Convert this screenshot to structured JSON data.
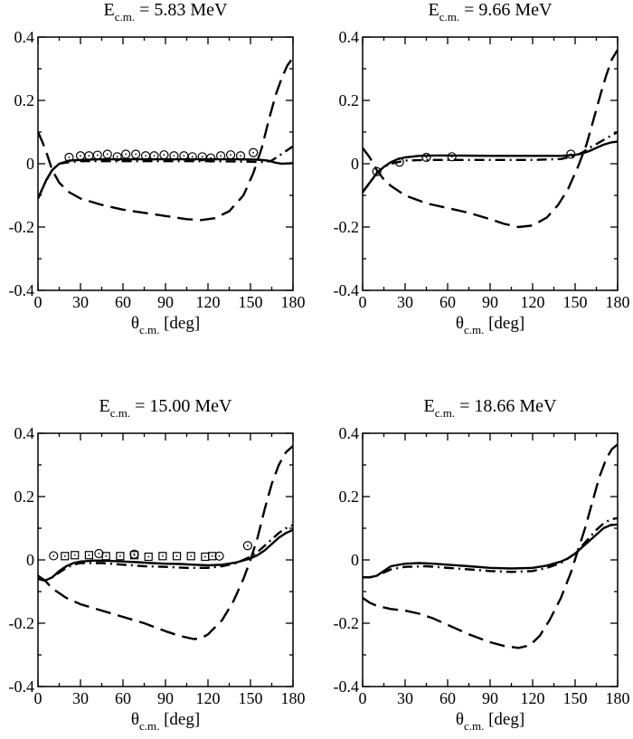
{
  "figure": {
    "description_hidden": null
  },
  "chart_data": [
    {
      "type": "line",
      "title": {
        "prefix": "E",
        "sub": "c.m.",
        "suffix": "= 5.83 MeV"
      },
      "xlabel": {
        "symbol": "θ",
        "sub": "c.m.",
        "unit": "[deg]"
      },
      "xlim": [
        0,
        180
      ],
      "ylim": [
        -0.4,
        0.4
      ],
      "xticks": [
        "0",
        "30",
        "60",
        "90",
        "120",
        "150",
        "180"
      ],
      "yticks": [
        "-0.4",
        "-0.2",
        "0",
        "0.2",
        "0.4"
      ],
      "series": [
        {
          "name": "solid",
          "style": "solid",
          "x": [
            0,
            3,
            6,
            10,
            15,
            22,
            30,
            45,
            60,
            90,
            120,
            140,
            155,
            162,
            168,
            172,
            176,
            180
          ],
          "y": [
            -0.11,
            -0.08,
            -0.05,
            -0.02,
            0.0,
            0.01,
            0.012,
            0.014,
            0.014,
            0.014,
            0.014,
            0.014,
            0.013,
            0.01,
            0.003,
            0.0,
            0.001,
            0.002
          ]
        },
        {
          "name": "dashed",
          "style": "dashed",
          "x": [
            0,
            3,
            6,
            10,
            15,
            22,
            30,
            45,
            60,
            75,
            90,
            105,
            115,
            125,
            135,
            145,
            152,
            158,
            163,
            168,
            172,
            176,
            180
          ],
          "y": [
            0.1,
            0.07,
            0.035,
            -0.02,
            -0.06,
            -0.09,
            -0.11,
            -0.13,
            -0.145,
            -0.155,
            -0.165,
            -0.175,
            -0.178,
            -0.172,
            -0.15,
            -0.1,
            -0.03,
            0.05,
            0.14,
            0.22,
            0.27,
            0.31,
            0.335
          ]
        },
        {
          "name": "dash-dot",
          "style": "dashdot",
          "x": [
            0,
            5,
            10,
            15,
            22,
            30,
            45,
            60,
            90,
            120,
            140,
            152,
            160,
            165,
            170,
            175,
            180
          ],
          "y": [
            -0.11,
            -0.06,
            -0.02,
            0.0,
            0.005,
            0.008,
            0.008,
            0.008,
            0.008,
            0.008,
            0.007,
            0.006,
            0.005,
            0.01,
            0.025,
            0.04,
            0.055
          ]
        }
      ],
      "points": [
        {
          "marker": "circle",
          "x": [
            22,
            30,
            36,
            42,
            49,
            56,
            62,
            69,
            76,
            82,
            89,
            96,
            103,
            109,
            116,
            122,
            129,
            136,
            143,
            152
          ],
          "y": [
            0.02,
            0.025,
            0.025,
            0.027,
            0.03,
            0.022,
            0.03,
            0.03,
            0.025,
            0.025,
            0.028,
            0.025,
            0.025,
            0.022,
            0.022,
            0.018,
            0.025,
            0.028,
            0.025,
            0.035
          ]
        }
      ]
    },
    {
      "type": "line",
      "title": {
        "prefix": "E",
        "sub": "c.m.",
        "suffix": "= 9.66 MeV"
      },
      "xlabel": {
        "symbol": "θ",
        "sub": "c.m.",
        "unit": "[deg]"
      },
      "xlim": [
        0,
        180
      ],
      "ylim": [
        -0.4,
        0.4
      ],
      "xticks": [
        "0",
        "30",
        "60",
        "90",
        "120",
        "150",
        "180"
      ],
      "yticks": [
        "-0.4",
        "-0.2",
        "0",
        "0.2",
        "0.4"
      ],
      "series": [
        {
          "name": "solid",
          "style": "solid",
          "x": [
            0,
            5,
            10,
            15,
            20,
            25,
            30,
            40,
            50,
            60,
            90,
            120,
            140,
            150,
            155,
            160,
            165,
            170,
            175,
            180
          ],
          "y": [
            -0.09,
            -0.06,
            -0.03,
            -0.01,
            0.005,
            0.015,
            0.02,
            0.025,
            0.026,
            0.026,
            0.025,
            0.025,
            0.025,
            0.028,
            0.032,
            0.04,
            0.05,
            0.06,
            0.067,
            0.07
          ]
        },
        {
          "name": "dashed",
          "style": "dashed",
          "x": [
            0,
            5,
            10,
            15,
            20,
            30,
            45,
            60,
            75,
            90,
            100,
            110,
            120,
            130,
            138,
            145,
            152,
            158,
            163,
            168,
            172,
            176,
            180
          ],
          "y": [
            0.05,
            0.02,
            -0.02,
            -0.05,
            -0.07,
            -0.1,
            -0.125,
            -0.14,
            -0.155,
            -0.175,
            -0.19,
            -0.2,
            -0.195,
            -0.17,
            -0.13,
            -0.08,
            -0.01,
            0.06,
            0.14,
            0.22,
            0.28,
            0.33,
            0.36
          ]
        },
        {
          "name": "dash-dot",
          "style": "dashdot",
          "x": [
            0,
            5,
            10,
            15,
            20,
            30,
            45,
            60,
            90,
            120,
            140,
            150,
            155,
            160,
            165,
            170,
            175,
            180
          ],
          "y": [
            -0.09,
            -0.06,
            -0.03,
            -0.01,
            0.0,
            0.01,
            0.012,
            0.012,
            0.012,
            0.012,
            0.015,
            0.025,
            0.035,
            0.05,
            0.062,
            0.075,
            0.088,
            0.1
          ]
        }
      ],
      "points": [
        {
          "marker": "circle",
          "x": [
            10,
            26,
            45,
            63,
            147
          ],
          "y": [
            -0.025,
            0.005,
            0.02,
            0.022,
            0.03
          ]
        }
      ]
    },
    {
      "type": "line",
      "title": {
        "prefix": "E",
        "sub": "c.m.",
        "suffix": "= 15.00 MeV"
      },
      "xlabel": {
        "symbol": "θ",
        "sub": "c.m.",
        "unit": "[deg]"
      },
      "xlim": [
        0,
        180
      ],
      "ylim": [
        -0.4,
        0.4
      ],
      "xticks": [
        "0",
        "30",
        "60",
        "90",
        "120",
        "150",
        "180"
      ],
      "yticks": [
        "-0.4",
        "-0.2",
        "0",
        "0.2",
        "0.4"
      ],
      "series": [
        {
          "name": "solid",
          "style": "solid",
          "x": [
            0,
            5,
            10,
            15,
            20,
            25,
            30,
            40,
            50,
            60,
            70,
            80,
            90,
            100,
            110,
            120,
            130,
            140,
            150,
            155,
            160,
            165,
            170,
            175,
            180
          ],
          "y": [
            -0.06,
            -0.065,
            -0.055,
            -0.035,
            -0.02,
            -0.01,
            -0.005,
            -0.002,
            -0.003,
            -0.005,
            -0.007,
            -0.01,
            -0.012,
            -0.013,
            -0.015,
            -0.017,
            -0.015,
            -0.008,
            0.005,
            0.015,
            0.03,
            0.05,
            0.07,
            0.085,
            0.095
          ]
        },
        {
          "name": "dashed",
          "style": "dashed",
          "x": [
            0,
            5,
            10,
            20,
            30,
            45,
            60,
            75,
            90,
            100,
            110,
            115,
            120,
            130,
            138,
            145,
            150,
            155,
            160,
            165,
            170,
            175,
            180
          ],
          "y": [
            -0.05,
            -0.065,
            -0.09,
            -0.12,
            -0.14,
            -0.16,
            -0.18,
            -0.2,
            -0.225,
            -0.24,
            -0.25,
            -0.248,
            -0.235,
            -0.19,
            -0.13,
            -0.06,
            0.0,
            0.07,
            0.16,
            0.24,
            0.3,
            0.34,
            0.36
          ]
        },
        {
          "name": "dash-dot",
          "style": "dashdot",
          "x": [
            0,
            5,
            10,
            15,
            20,
            25,
            30,
            45,
            60,
            75,
            90,
            105,
            120,
            130,
            140,
            150,
            155,
            160,
            165,
            170,
            175,
            180
          ],
          "y": [
            -0.06,
            -0.065,
            -0.055,
            -0.04,
            -0.025,
            -0.015,
            -0.01,
            -0.01,
            -0.015,
            -0.02,
            -0.022,
            -0.025,
            -0.025,
            -0.02,
            -0.01,
            0.01,
            0.025,
            0.045,
            0.065,
            0.085,
            0.1,
            0.11
          ]
        }
      ],
      "points": [
        {
          "marker": "circle",
          "x": [
            11,
            43,
            68,
            128,
            148
          ],
          "y": [
            0.013,
            0.02,
            0.018,
            0.012,
            0.045
          ]
        },
        {
          "marker": "square",
          "x": [
            19,
            26,
            36,
            48,
            58,
            68,
            78,
            88,
            98,
            108,
            118,
            123
          ],
          "y": [
            0.012,
            0.015,
            0.015,
            0.012,
            0.012,
            0.015,
            0.01,
            0.012,
            0.012,
            0.012,
            0.01,
            0.012
          ]
        }
      ]
    },
    {
      "type": "line",
      "title": {
        "prefix": "E",
        "sub": "c.m.",
        "suffix": "= 18.66 MeV"
      },
      "xlabel": {
        "symbol": "θ",
        "sub": "c.m.",
        "unit": "[deg]"
      },
      "xlim": [
        0,
        180
      ],
      "ylim": [
        -0.4,
        0.4
      ],
      "xticks": [
        "0",
        "30",
        "60",
        "90",
        "120",
        "150",
        "180"
      ],
      "yticks": [
        "-0.4",
        "-0.2",
        "0",
        "0.2",
        "0.4"
      ],
      "series": [
        {
          "name": "solid",
          "style": "solid",
          "x": [
            0,
            5,
            10,
            15,
            20,
            30,
            40,
            50,
            60,
            75,
            90,
            105,
            120,
            130,
            140,
            145,
            150,
            155,
            160,
            165,
            170,
            175,
            180
          ],
          "y": [
            -0.055,
            -0.055,
            -0.05,
            -0.035,
            -0.02,
            -0.012,
            -0.01,
            -0.012,
            -0.015,
            -0.02,
            -0.025,
            -0.027,
            -0.025,
            -0.018,
            -0.005,
            0.005,
            0.02,
            0.04,
            0.06,
            0.08,
            0.1,
            0.11,
            0.112
          ]
        },
        {
          "name": "dashed",
          "style": "dashed",
          "x": [
            0,
            5,
            10,
            20,
            30,
            40,
            50,
            60,
            75,
            90,
            100,
            110,
            118,
            125,
            132,
            140,
            147,
            152,
            157,
            162,
            167,
            172,
            176,
            180
          ],
          "y": [
            -0.12,
            -0.135,
            -0.145,
            -0.155,
            -0.16,
            -0.17,
            -0.185,
            -0.205,
            -0.235,
            -0.26,
            -0.272,
            -0.278,
            -0.27,
            -0.24,
            -0.19,
            -0.12,
            -0.04,
            0.03,
            0.1,
            0.18,
            0.26,
            0.32,
            0.35,
            0.365
          ]
        },
        {
          "name": "dash-dot",
          "style": "dashdot",
          "x": [
            0,
            5,
            10,
            15,
            20,
            30,
            45,
            60,
            75,
            90,
            105,
            120,
            130,
            140,
            145,
            150,
            155,
            160,
            165,
            170,
            175,
            180
          ],
          "y": [
            -0.055,
            -0.055,
            -0.05,
            -0.04,
            -0.03,
            -0.022,
            -0.02,
            -0.025,
            -0.03,
            -0.035,
            -0.038,
            -0.035,
            -0.025,
            -0.01,
            0.005,
            0.02,
            0.045,
            0.07,
            0.095,
            0.115,
            0.128,
            0.132
          ]
        }
      ],
      "points": []
    }
  ]
}
